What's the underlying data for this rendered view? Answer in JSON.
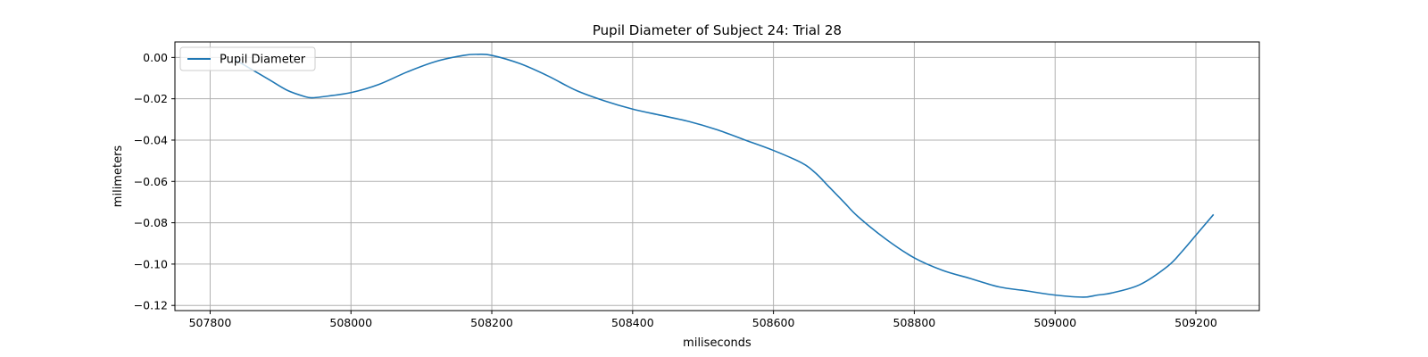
{
  "chart_data": {
    "type": "line",
    "title": "Pupil Diameter of Subject 24: Trial 28",
    "xlabel": "miliseconds",
    "ylabel": "milimeters",
    "xlim": [
      507750,
      509290
    ],
    "ylim": [
      -0.1225,
      0.0075
    ],
    "xticks": [
      507800,
      508000,
      508200,
      508400,
      508600,
      508800,
      509000,
      509200
    ],
    "yticks": [
      0.0,
      -0.02,
      -0.04,
      -0.06,
      -0.08,
      -0.1,
      -0.12
    ],
    "ytick_labels": [
      "0.00",
      "−0.02",
      "−0.04",
      "−0.06",
      "−0.08",
      "−0.10",
      "−0.12"
    ],
    "grid": true,
    "legend": {
      "position": "top-left",
      "entries": [
        "Pupil Diameter"
      ]
    },
    "series": [
      {
        "name": "Pupil Diameter",
        "color": "#1f77b4",
        "x": [
          507835,
          507860,
          507885,
          507910,
          507935,
          507945,
          507960,
          508000,
          508040,
          508080,
          508120,
          508160,
          508180,
          508200,
          508240,
          508280,
          508320,
          508360,
          508400,
          508440,
          508480,
          508520,
          508560,
          508600,
          508640,
          508660,
          508680,
          508700,
          508720,
          508760,
          508800,
          508840,
          508880,
          508920,
          508960,
          509000,
          509040,
          509060,
          509080,
          509120,
          509160,
          509180,
          509200,
          509225
        ],
        "y": [
          -0.001,
          -0.006,
          -0.011,
          -0.016,
          -0.019,
          -0.0195,
          -0.019,
          -0.017,
          -0.013,
          -0.007,
          -0.002,
          0.001,
          0.0015,
          0.001,
          -0.003,
          -0.009,
          -0.016,
          -0.021,
          -0.025,
          -0.028,
          -0.031,
          -0.035,
          -0.04,
          -0.045,
          -0.051,
          -0.056,
          -0.063,
          -0.07,
          -0.077,
          -0.088,
          -0.097,
          -0.103,
          -0.107,
          -0.111,
          -0.113,
          -0.115,
          -0.116,
          -0.115,
          -0.114,
          -0.11,
          -0.101,
          -0.094,
          -0.086,
          -0.076
        ]
      }
    ]
  }
}
